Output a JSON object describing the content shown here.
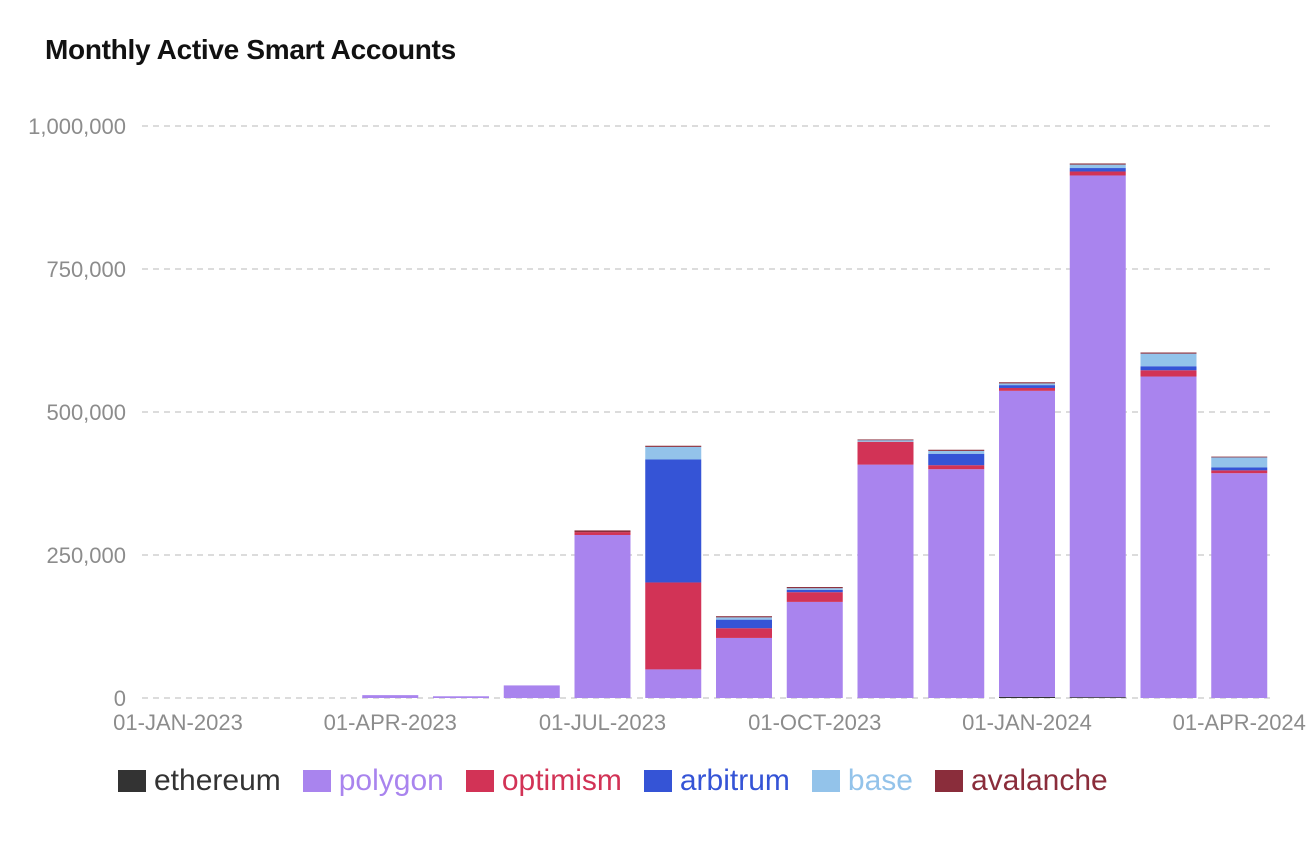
{
  "title": "Monthly Active Smart Accounts",
  "colors": {
    "ethereum": "#333333",
    "polygon": "#a984ee",
    "optimism": "#d23356",
    "arbitrum": "#3554d6",
    "base": "#93c3ea",
    "avalanche": "#8a2d3b",
    "grid": "#c8c8c8",
    "tick": "#8c8c8c"
  },
  "chart_data": {
    "type": "bar",
    "stacked": true,
    "title": "Monthly Active Smart Accounts",
    "xlabel": "",
    "ylabel": "",
    "ylim": [
      0,
      1000000
    ],
    "yticks": [
      0,
      250000,
      500000,
      750000,
      1000000
    ],
    "ytick_labels": [
      "0",
      "250,000",
      "500,000",
      "750,000",
      "1,000,000"
    ],
    "xtick_labels": [
      {
        "label": "01-JAN-2023",
        "category": "2023-01"
      },
      {
        "label": "01-APR-2023",
        "category": "2023-04"
      },
      {
        "label": "01-JUL-2023",
        "category": "2023-07"
      },
      {
        "label": "01-OCT-2023",
        "category": "2023-10"
      },
      {
        "label": "01-JAN-2024",
        "category": "2024-01"
      },
      {
        "label": "01-APR-2024",
        "category": "2024-04"
      }
    ],
    "grid": true,
    "legend": "bottom",
    "categories": [
      "2023-01",
      "2023-02",
      "2023-03",
      "2023-04",
      "2023-05",
      "2023-06",
      "2023-07",
      "2023-08",
      "2023-09",
      "2023-10",
      "2023-11",
      "2023-12",
      "2024-01",
      "2024-02",
      "2024-03",
      "2024-04"
    ],
    "series": [
      {
        "name": "ethereum",
        "values": [
          0,
          0,
          0,
          0,
          0,
          0,
          0,
          0,
          0,
          0,
          0,
          0,
          2000,
          1500,
          0,
          0
        ]
      },
      {
        "name": "polygon",
        "values": [
          0,
          0,
          0,
          5000,
          3000,
          22000,
          285000,
          50000,
          105000,
          168000,
          408000,
          400000,
          535000,
          912000,
          562000,
          393000
        ]
      },
      {
        "name": "optimism",
        "values": [
          0,
          0,
          0,
          0,
          0,
          0,
          5000,
          152000,
          17000,
          17000,
          40000,
          7000,
          5000,
          7000,
          11000,
          5000
        ]
      },
      {
        "name": "arbitrum",
        "values": [
          0,
          0,
          0,
          0,
          0,
          0,
          0,
          215000,
          15000,
          4000,
          0,
          20000,
          5000,
          6000,
          7000,
          5000
        ]
      },
      {
        "name": "base",
        "values": [
          0,
          0,
          0,
          0,
          0,
          0,
          0,
          22000,
          4000,
          3000,
          3000,
          5000,
          3000,
          6000,
          22000,
          18000
        ]
      },
      {
        "name": "avalanche",
        "values": [
          0,
          0,
          0,
          0,
          0,
          0,
          3000,
          2000,
          2000,
          2000,
          1000,
          2000,
          2000,
          2000,
          2000,
          1000
        ]
      }
    ]
  }
}
